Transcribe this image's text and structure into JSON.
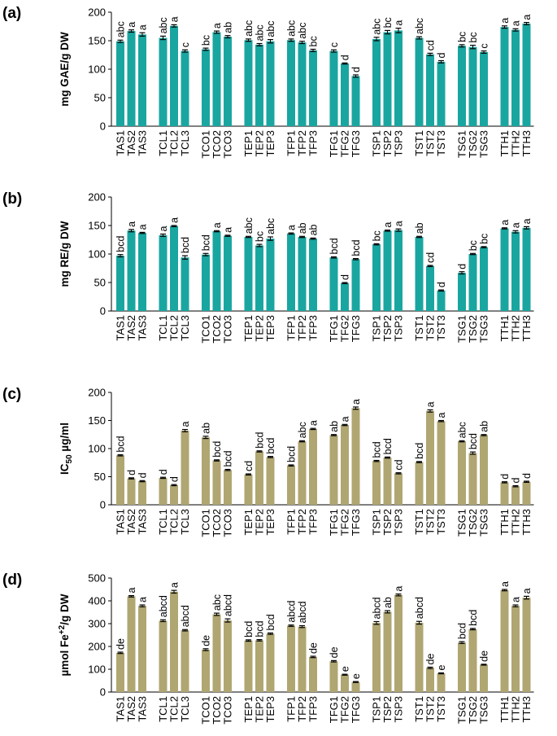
{
  "colors": {
    "teal": "#1aa6a0",
    "tan": "#b0a672",
    "axis": "#000000"
  },
  "chart_data": [
    {
      "type": "bar",
      "panel": "(a)",
      "ylabel": "mg GAE/g DW",
      "ylabel_sub": "",
      "ylabel_tail": "",
      "ylim": [
        0,
        200
      ],
      "yticks": [
        0,
        50,
        100,
        150,
        200
      ],
      "color": "teal",
      "groups": [
        {
          "categories": [
            "TAS1",
            "TAS2",
            "TAS3"
          ],
          "values": [
            149,
            167,
            161
          ],
          "errors": [
            2,
            2,
            3
          ],
          "letters": [
            "abc",
            "a",
            "a"
          ]
        },
        {
          "categories": [
            "TCL1",
            "TCL2",
            "TCL3"
          ],
          "values": [
            155,
            176,
            132
          ],
          "errors": [
            3,
            2,
            2
          ],
          "letters": [
            "abc",
            "a",
            "c"
          ]
        },
        {
          "categories": [
            "TCO1",
            "TCO2",
            "TCO3"
          ],
          "values": [
            135,
            165,
            157
          ],
          "errors": [
            2,
            2,
            2
          ],
          "letters": [
            "bc",
            "a",
            "ab"
          ]
        },
        {
          "categories": [
            "TEP1",
            "TEP2",
            "TEP3"
          ],
          "values": [
            151,
            143,
            149
          ],
          "errors": [
            2,
            2,
            3
          ],
          "letters": [
            "abc",
            "abc",
            "abc"
          ]
        },
        {
          "categories": [
            "TFP1",
            "TFP2",
            "TFP3"
          ],
          "values": [
            151,
            147,
            133
          ],
          "errors": [
            2,
            2,
            2
          ],
          "letters": [
            "abc",
            "abc",
            "bc"
          ]
        },
        {
          "categories": [
            "TFG1",
            "TFG2",
            "TFG3"
          ],
          "values": [
            132,
            110,
            88
          ],
          "errors": [
            2,
            1,
            2
          ],
          "letters": [
            "c",
            "d",
            "d"
          ]
        },
        {
          "categories": [
            "TSP1",
            "TSP2",
            "TSP3"
          ],
          "values": [
            153,
            165,
            168
          ],
          "errors": [
            3,
            3,
            4
          ],
          "letters": [
            "abc",
            "bc",
            "a"
          ]
        },
        {
          "categories": [
            "TST1",
            "TST2",
            "TST3"
          ],
          "values": [
            155,
            126,
            113
          ],
          "errors": [
            2,
            2,
            2
          ],
          "letters": [
            "abc",
            "cd",
            "d"
          ]
        },
        {
          "categories": [
            "TSG1",
            "TSG2",
            "TSG3"
          ],
          "values": [
            141,
            139,
            130
          ],
          "errors": [
            2,
            3,
            2
          ],
          "letters": [
            "bc",
            "bc",
            "c"
          ]
        },
        {
          "categories": [
            "TTH1",
            "TTH2",
            "TTH3"
          ],
          "values": [
            174,
            169,
            180
          ],
          "errors": [
            2,
            2,
            2
          ],
          "letters": [
            "a",
            "a",
            "a"
          ]
        }
      ]
    },
    {
      "type": "bar",
      "panel": "(b)",
      "ylabel": "mg RE/g DW",
      "ylabel_sub": "",
      "ylabel_tail": "",
      "ylim": [
        0,
        200
      ],
      "yticks": [
        0,
        50,
        100,
        150,
        200
      ],
      "color": "teal",
      "groups": [
        {
          "categories": [
            "TAS1",
            "TAS2",
            "TAS3"
          ],
          "values": [
            97,
            141,
            137
          ],
          "errors": [
            2,
            2,
            1
          ],
          "letters": [
            "bcd",
            "a",
            "a"
          ]
        },
        {
          "categories": [
            "TCL1",
            "TCL2",
            "TCL3"
          ],
          "values": [
            133,
            149,
            94
          ],
          "errors": [
            2,
            1,
            3
          ],
          "letters": [
            "a",
            "a",
            "bcd"
          ]
        },
        {
          "categories": [
            "TCO1",
            "TCO2",
            "TCO3"
          ],
          "values": [
            99,
            140,
            132
          ],
          "errors": [
            2,
            1,
            1
          ],
          "letters": [
            "bcd",
            "a",
            "a"
          ]
        },
        {
          "categories": [
            "TEP1",
            "TEP2",
            "TEP3"
          ],
          "values": [
            130,
            115,
            127
          ],
          "errors": [
            1,
            2,
            3
          ],
          "letters": [
            "abc",
            "bc",
            "abc"
          ]
        },
        {
          "categories": [
            "TFP1",
            "TFP2",
            "TFP3"
          ],
          "values": [
            136,
            130,
            127
          ],
          "errors": [
            1,
            1,
            1
          ],
          "letters": [
            "a",
            "ab",
            "ab"
          ]
        },
        {
          "categories": [
            "TFG1",
            "TFG2",
            "TFG3"
          ],
          "values": [
            94,
            49,
            91
          ],
          "errors": [
            1,
            1,
            1
          ],
          "letters": [
            "bcd",
            "d",
            "bcd"
          ]
        },
        {
          "categories": [
            "TSP1",
            "TSP2",
            "TSP3"
          ],
          "values": [
            117,
            141,
            142
          ],
          "errors": [
            1,
            1,
            2
          ],
          "letters": [
            "bc",
            "a",
            "a"
          ]
        },
        {
          "categories": [
            "TST1",
            "TST2",
            "TST3"
          ],
          "values": [
            130,
            79,
            36
          ],
          "errors": [
            1,
            1,
            1
          ],
          "letters": [
            "ab",
            "cd",
            "d"
          ]
        },
        {
          "categories": [
            "TSG1",
            "TSG2",
            "TSG3"
          ],
          "values": [
            67,
            100,
            112
          ],
          "errors": [
            2,
            1,
            1
          ],
          "letters": [
            "d",
            "bc",
            "bc"
          ]
        },
        {
          "categories": [
            "TTH1",
            "TTH2",
            "TTH3"
          ],
          "values": [
            145,
            139,
            146
          ],
          "errors": [
            1,
            2,
            2
          ],
          "letters": [
            "a",
            "a",
            "a"
          ]
        }
      ]
    },
    {
      "type": "bar",
      "panel": "(c)",
      "ylabel": "IC",
      "ylabel_sub": "50",
      "ylabel_tail": " µg/ml",
      "ylim": [
        0,
        200
      ],
      "yticks": [
        0,
        50,
        100,
        150,
        200
      ],
      "color": "tan",
      "groups": [
        {
          "categories": [
            "TAS1",
            "TAS2",
            "TAS3"
          ],
          "values": [
            88,
            47,
            42
          ],
          "errors": [
            1,
            1,
            1
          ],
          "letters": [
            "bcd",
            "d",
            "d"
          ]
        },
        {
          "categories": [
            "TCL1",
            "TCL2",
            "TCL3"
          ],
          "values": [
            48,
            35,
            132
          ],
          "errors": [
            1,
            1,
            2
          ],
          "letters": [
            "d",
            "d",
            "a"
          ]
        },
        {
          "categories": [
            "TCO1",
            "TCO2",
            "TCO3"
          ],
          "values": [
            120,
            79,
            62
          ],
          "errors": [
            2,
            1,
            1
          ],
          "letters": [
            "ab",
            "bcd",
            "bcd"
          ]
        },
        {
          "categories": [
            "TEP1",
            "TEP2",
            "TEP3"
          ],
          "values": [
            54,
            95,
            85
          ],
          "errors": [
            1,
            1,
            1
          ],
          "letters": [
            "cd",
            "bcd",
            "bcd"
          ]
        },
        {
          "categories": [
            "TFP1",
            "TFP2",
            "TFP3"
          ],
          "values": [
            70,
            113,
            135
          ],
          "errors": [
            1,
            1,
            1
          ],
          "letters": [
            "bcd",
            "abc",
            "a"
          ]
        },
        {
          "categories": [
            "TFG1",
            "TFG2",
            "TFG3"
          ],
          "values": [
            124,
            142,
            172
          ],
          "errors": [
            1,
            1,
            2
          ],
          "letters": [
            "ab",
            "a",
            "a"
          ]
        },
        {
          "categories": [
            "TSP1",
            "TSP2",
            "TSP3"
          ],
          "values": [
            78,
            84,
            56
          ],
          "errors": [
            1,
            1,
            1
          ],
          "letters": [
            "bcd",
            "bcd",
            "cd"
          ]
        },
        {
          "categories": [
            "TST1",
            "TST2",
            "TST3"
          ],
          "values": [
            76,
            167,
            149
          ],
          "errors": [
            1,
            2,
            1
          ],
          "letters": [
            "bcd",
            "a",
            "a"
          ]
        },
        {
          "categories": [
            "TSG1",
            "TSG2",
            "TSG3"
          ],
          "values": [
            113,
            92,
            124
          ],
          "errors": [
            1,
            2,
            1
          ],
          "letters": [
            "abc",
            "bcd",
            "ab"
          ]
        },
        {
          "categories": [
            "TTH1",
            "TTH2",
            "TTH3"
          ],
          "values": [
            40,
            33,
            41
          ],
          "errors": [
            1,
            1,
            1
          ],
          "letters": [
            "d",
            "d",
            "d"
          ]
        }
      ]
    },
    {
      "type": "bar",
      "panel": "(d)",
      "ylabel": "µmol Fe",
      "ylabel_sub": "",
      "ylabel_sup": "+2",
      "ylabel_tail": "/g DW",
      "ylim": [
        0,
        500
      ],
      "yticks": [
        0,
        100,
        200,
        300,
        400,
        500
      ],
      "color": "tan",
      "groups": [
        {
          "categories": [
            "TAS1",
            "TAS2",
            "TAS3"
          ],
          "values": [
            172,
            420,
            378
          ],
          "errors": [
            3,
            3,
            4
          ],
          "letters": [
            "de",
            "a",
            "a"
          ]
        },
        {
          "categories": [
            "TCL1",
            "TCL2",
            "TCL3"
          ],
          "values": [
            313,
            440,
            271
          ],
          "errors": [
            4,
            6,
            3
          ],
          "letters": [
            "abcd",
            "a",
            "abcd"
          ]
        },
        {
          "categories": [
            "TCO1",
            "TCO2",
            "TCO3"
          ],
          "values": [
            186,
            341,
            314
          ],
          "errors": [
            4,
            5,
            7
          ],
          "letters": [
            "de",
            "abc",
            "abcd"
          ]
        },
        {
          "categories": [
            "TEP1",
            "TEP2",
            "TEP3"
          ],
          "values": [
            226,
            227,
            256
          ],
          "errors": [
            3,
            3,
            3
          ],
          "letters": [
            "bcd",
            "bcd",
            "bcd"
          ]
        },
        {
          "categories": [
            "TFP1",
            "TFP2",
            "TFP3"
          ],
          "values": [
            291,
            287,
            154
          ],
          "errors": [
            3,
            4,
            3
          ],
          "letters": [
            "abcd",
            "abcd",
            "de"
          ]
        },
        {
          "categories": [
            "TFG1",
            "TFG2",
            "TFG3"
          ],
          "values": [
            135,
            76,
            44
          ],
          "errors": [
            3,
            2,
            2
          ],
          "letters": [
            "de",
            "e",
            "e"
          ]
        },
        {
          "categories": [
            "TSP1",
            "TSP2",
            "TSP3"
          ],
          "values": [
            303,
            352,
            426
          ],
          "errors": [
            6,
            5,
            4
          ],
          "letters": [
            "abcd",
            "ab",
            "a"
          ]
        },
        {
          "categories": [
            "TST1",
            "TST2",
            "TST3"
          ],
          "values": [
            304,
            106,
            82
          ],
          "errors": [
            6,
            3,
            2
          ],
          "letters": [
            "abcd",
            "de",
            "e"
          ]
        },
        {
          "categories": [
            "TSG1",
            "TSG2",
            "TSG3"
          ],
          "values": [
            217,
            276,
            120
          ],
          "errors": [
            4,
            3,
            2
          ],
          "letters": [
            "bcd",
            "bcd",
            "de"
          ]
        },
        {
          "categories": [
            "TTH1",
            "TTH2",
            "TTH3"
          ],
          "values": [
            447,
            378,
            414
          ],
          "errors": [
            3,
            4,
            6
          ],
          "letters": [
            "a",
            "a",
            "a"
          ]
        }
      ]
    }
  ]
}
